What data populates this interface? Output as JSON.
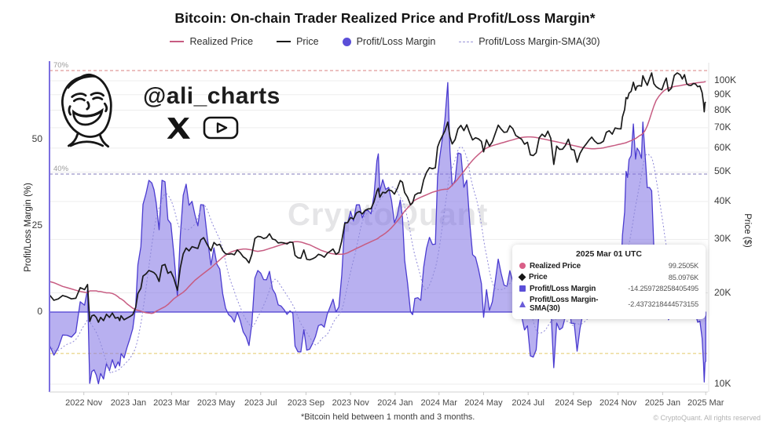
{
  "header": {
    "title": "Bitcoin: On-chain Trader Realized Price and Profit/Loss Margin*"
  },
  "legend": {
    "items": [
      {
        "label": "Realized Price",
        "marker": "line",
        "color": "#c75c82"
      },
      {
        "label": "Price",
        "marker": "line",
        "color": "#1a1a1a"
      },
      {
        "label": "Profit/Loss Margin",
        "marker": "circle",
        "color": "#5b4fd8"
      },
      {
        "label": "Profit/Loss Margin-SMA(30)",
        "marker": "dash",
        "color": "#9a94d8"
      }
    ]
  },
  "watermarks": {
    "handle": "@ali_charts",
    "center": "CryptoQuant",
    "icons": [
      "laughing-face",
      "x-logo",
      "youtube-logo"
    ]
  },
  "axes": {
    "left": {
      "title": "Profit/Loss Margin (%)",
      "ticks": [
        {
          "label": "50",
          "value": 50
        },
        {
          "label": "25",
          "value": 25
        },
        {
          "label": "0",
          "value": 0
        }
      ]
    },
    "right": {
      "title": "Price ($)",
      "scale": "log",
      "ticks": [
        {
          "label": "100K",
          "value": 100
        },
        {
          "label": "90K",
          "value": 90
        },
        {
          "label": "80K",
          "value": 80
        },
        {
          "label": "70K",
          "value": 70
        },
        {
          "label": "60K",
          "value": 60
        },
        {
          "label": "50K",
          "value": 50
        },
        {
          "label": "40K",
          "value": 40
        },
        {
          "label": "30K",
          "value": 30
        },
        {
          "label": "20K",
          "value": 20
        },
        {
          "label": "10K",
          "value": 10
        }
      ]
    },
    "x": {
      "ticks": [
        {
          "label": "2022 Nov",
          "day": 47
        },
        {
          "label": "2023 Jan",
          "day": 108
        },
        {
          "label": "2023 Mar",
          "day": 167
        },
        {
          "label": "2023 May",
          "day": 228
        },
        {
          "label": "2023 Jul",
          "day": 289
        },
        {
          "label": "2023 Sep",
          "day": 351
        },
        {
          "label": "2023 Nov",
          "day": 412
        },
        {
          "label": "2024 Jan",
          "day": 473
        },
        {
          "label": "2024 Mar",
          "day": 533
        },
        {
          "label": "2024 May",
          "day": 594
        },
        {
          "label": "2024 Jul",
          "day": 655
        },
        {
          "label": "2024 Sep",
          "day": 717
        },
        {
          "label": "2024 Nov",
          "day": 778
        },
        {
          "label": "2025 Jan",
          "day": 839
        },
        {
          "label": "2025 Mar",
          "day": 898
        }
      ]
    }
  },
  "thresholds": [
    {
      "label": "70%",
      "value": 70,
      "color": "#e09a9a"
    },
    {
      "label": "40%",
      "value": 40,
      "color": "#9a94c8"
    },
    {
      "label": "",
      "value": -12,
      "color": "#e6cf7a"
    }
  ],
  "tooltip": {
    "title": "2025 Mar 01 UTC",
    "rows": [
      {
        "marker": "circle",
        "color": "#d95f87",
        "label": "Realized Price",
        "value": "99.2505K"
      },
      {
        "marker": "diamond",
        "color": "#151515",
        "label": "Price",
        "value": "85.0976K"
      },
      {
        "marker": "square",
        "color": "#5b4fd8",
        "label": "Profit/Loss Margin",
        "value": "-14.259728258405495"
      },
      {
        "marker": "triangle",
        "color": "#6a5cd8",
        "label": "Profit/Loss Margin-SMA(30)",
        "value": "-2.4373218444573155"
      }
    ]
  },
  "footer": {
    "note": "*Bitcoin held between 1 month and 3 months.",
    "copyright": "© CryptoQuant. All rights reserved"
  },
  "colors": {
    "area_fill": "rgba(126,112,228,0.55)",
    "area_edge": "#4b3cd0",
    "price": "#1a1a1a",
    "realized": "#c75c82",
    "sma": "#8f89d9",
    "grid": "#ededed",
    "left_axis": "#7b6fe0",
    "bottom_axis": "#d9d9d9",
    "right_edge": "#e3e3e3",
    "tick": "#c9c9c9"
  },
  "chart_data": {
    "type": "area+line",
    "title": "Bitcoin: On-chain Trader Realized Price and Profit/Loss Margin*",
    "x_axis": "date (days since start_date)",
    "start_date": "2022-09-15",
    "left_axis": {
      "label": "Profit/Loss Margin (%)",
      "range": [
        -23,
        72
      ]
    },
    "right_axis": {
      "label": "Price ($)",
      "scale": "log",
      "range_k": [
        9.7,
        115
      ]
    },
    "note": "margin_pct = (price/realized_price - 1) * 100; SMA(30) = 30-day moving average of margin_pct",
    "days": [
      0,
      6,
      12,
      18,
      24,
      30,
      36,
      42,
      48,
      52,
      55,
      58,
      61,
      64,
      67,
      70,
      74,
      78,
      82,
      86,
      90,
      94,
      96,
      98,
      102,
      106,
      110,
      114,
      118,
      121,
      125,
      128,
      132,
      136,
      140,
      143,
      146,
      150,
      154,
      158,
      162,
      166,
      170,
      175,
      179,
      183,
      187,
      191,
      195,
      199,
      203,
      207,
      211,
      216,
      221,
      225,
      229,
      233,
      237,
      241,
      245,
      249,
      253,
      257,
      261,
      265,
      269,
      273,
      277,
      281,
      285,
      289,
      293,
      297,
      301,
      305,
      309,
      313,
      317,
      321,
      325,
      329,
      333,
      336,
      340,
      344,
      348,
      352,
      356,
      360,
      364,
      368,
      372,
      376,
      380,
      384,
      388,
      392,
      396,
      400,
      404,
      408,
      412,
      416,
      420,
      424,
      428,
      432,
      436,
      440,
      444,
      448,
      450,
      452,
      456,
      460,
      464,
      468,
      472,
      476,
      480,
      483,
      486,
      490,
      494,
      497,
      500,
      504,
      508,
      512,
      516,
      520,
      524,
      528,
      531,
      534,
      538,
      541,
      545,
      548,
      551,
      555,
      559,
      563,
      567,
      571,
      575,
      579,
      583,
      587,
      591,
      594,
      598,
      602,
      606,
      610,
      614,
      618,
      622,
      626,
      630,
      634,
      638,
      642,
      646,
      650,
      654,
      658,
      662,
      666,
      670,
      674,
      678,
      682,
      686,
      690,
      694,
      698,
      702,
      706,
      710,
      714,
      718,
      722,
      726,
      730,
      734,
      738,
      742,
      746,
      750,
      754,
      758,
      762,
      766,
      770,
      774,
      778,
      782,
      784,
      787,
      789,
      791,
      793,
      796,
      799,
      802,
      804,
      807,
      810,
      812,
      815,
      818,
      821,
      824,
      827,
      830,
      834,
      838,
      841,
      844,
      847,
      851,
      855,
      859,
      863,
      866,
      869,
      872,
      875,
      878,
      881,
      884,
      887,
      890,
      893,
      895,
      896,
      897,
      898
    ],
    "price_k": [
      19.7,
      18.9,
      19.1,
      19.6,
      19.4,
      19.1,
      19.2,
      20.8,
      20.5,
      21.3,
      16.1,
      16.8,
      16.9,
      16.6,
      16.0,
      16.6,
      16.2,
      17.0,
      16.6,
      17.15,
      16.5,
      16.6,
      16.2,
      16.8,
      16.3,
      16.5,
      16.7,
      16.95,
      17.9,
      19.9,
      20.7,
      22.7,
      23.1,
      23.7,
      23.5,
      23.3,
      22.9,
      21.8,
      24.6,
      24.8,
      23.2,
      23.5,
      22.4,
      20.4,
      24.2,
      26.9,
      28.1,
      27.5,
      28.4,
      28.2,
      28.0,
      29.9,
      30.4,
      28.8,
      27.5,
      29.3,
      28.7,
      28.9,
      27.6,
      26.9,
      26.8,
      26.9,
      26.7,
      27.7,
      27.1,
      26.3,
      25.9,
      25.1,
      26.8,
      30.2,
      30.7,
      30.6,
      30.2,
      30.4,
      31.3,
      30.1,
      29.9,
      29.2,
      29.3,
      29.2,
      29.0,
      29.4,
      29.3,
      26.6,
      26.1,
      26.0,
      27.7,
      25.8,
      25.7,
      25.9,
      26.2,
      26.8,
      26.6,
      26.2,
      27.0,
      27.4,
      27.9,
      26.8,
      27.2,
      29.7,
      33.9,
      34.1,
      35.4,
      35.0,
      36.7,
      37.1,
      36.4,
      37.4,
      37.8,
      37.9,
      39.9,
      43.3,
      44.2,
      41.3,
      42.9,
      42.7,
      43.7,
      43.4,
      42.3,
      44.2,
      46.9,
      46.3,
      42.8,
      41.3,
      39.0,
      39.6,
      42.0,
      42.6,
      42.7,
      47.1,
      49.9,
      51.7,
      51.3,
      51.7,
      60.4,
      63.2,
      66.1,
      68.3,
      73.1,
      65.3,
      61.9,
      64.0,
      69.4,
      71.3,
      68.5,
      71.6,
      67.2,
      63.8,
      64.9,
      64.3,
      63.1,
      58.3,
      63.9,
      60.9,
      62.9,
      67.0,
      71.4,
      69.3,
      67.6,
      67.8,
      71.1,
      69.5,
      66.0,
      65.1,
      64.2,
      61.8,
      62.7,
      57.0,
      56.7,
      57.9,
      64.8,
      66.7,
      65.4,
      68.2,
      64.6,
      53.0,
      60.9,
      59.4,
      59.5,
      61.2,
      64.2,
      59.4,
      59.1,
      53.9,
      57.6,
      60.0,
      61.7,
      63.6,
      65.2,
      63.3,
      62.1,
      62.3,
      63.2,
      67.6,
      68.4,
      66.7,
      69.9,
      69.5,
      69.4,
      75.9,
      80.4,
      88.0,
      87.3,
      91.0,
      92.3,
      98.9,
      93.1,
      95.9,
      96.4,
      96.0,
      103.9,
      99.8,
      96.6,
      101.4,
      106.1,
      97.8,
      95.7,
      94.2,
      93.4,
      98.1,
      102.1,
      92.5,
      94.5,
      104.1,
      106.1,
      104.7,
      101.3,
      104.7,
      97.7,
      96.6,
      96.5,
      97.9,
      97.6,
      95.6,
      96.1,
      91.4,
      84.3,
      79.0,
      84.7,
      85.0976
    ],
    "realized_price_k": [
      21.8,
      21.6,
      21.3,
      21.0,
      20.8,
      20.6,
      20.4,
      20.2,
      20.1,
      20.0,
      20.3,
      20.3,
      20.3,
      20.3,
      20.2,
      20.2,
      20.1,
      20.0,
      20.0,
      19.9,
      19.7,
      19.4,
      19.2,
      19.1,
      18.8,
      18.4,
      18.1,
      17.8,
      17.6,
      17.5,
      17.4,
      17.3,
      17.2,
      17.15,
      17.1,
      17.2,
      17.4,
      17.6,
      17.8,
      18.0,
      18.3,
      18.7,
      19.1,
      19.5,
      19.8,
      20.1,
      20.5,
      21.0,
      21.5,
      22.0,
      22.4,
      22.8,
      23.2,
      23.7,
      24.2,
      24.7,
      25.2,
      25.7,
      26.2,
      26.6,
      27.0,
      27.3,
      27.5,
      27.7,
      27.8,
      27.9,
      27.9,
      27.8,
      27.7,
      27.5,
      27.4,
      27.5,
      27.6,
      27.8,
      28.0,
      28.2,
      28.4,
      28.6,
      28.8,
      29.0,
      29.2,
      29.3,
      29.4,
      29.5,
      29.5,
      29.4,
      29.2,
      29.0,
      28.8,
      28.5,
      28.2,
      27.9,
      27.6,
      27.4,
      27.2,
      27.0,
      26.9,
      26.8,
      26.8,
      26.8,
      26.9,
      27.1,
      27.4,
      27.7,
      28.0,
      28.3,
      28.6,
      28.9,
      29.2,
      29.5,
      29.8,
      30.1,
      30.3,
      30.6,
      31.0,
      31.5,
      32.1,
      32.8,
      33.6,
      34.5,
      35.4,
      36.3,
      37.2,
      38.1,
      39.0,
      39.9,
      40.4,
      40.9,
      41.3,
      41.7,
      42.1,
      42.5,
      42.9,
      43.2,
      43.4,
      43.6,
      43.8,
      43.9,
      43.9,
      44.5,
      45.3,
      46.3,
      47.5,
      48.9,
      50.3,
      51.8,
      53.3,
      54.7,
      56.0,
      57.2,
      58.3,
      59.2,
      60.0,
      60.6,
      61.1,
      61.5,
      61.9,
      62.3,
      62.7,
      63.1,
      63.5,
      63.9,
      64.3,
      64.7,
      65.0,
      65.2,
      65.3,
      65.3,
      65.2,
      65.0,
      64.7,
      64.4,
      64.1,
      63.8,
      63.5,
      63.2,
      62.9,
      62.6,
      62.3,
      62.0,
      61.7,
      61.4,
      61.1,
      60.8,
      60.5,
      60.2,
      60.0,
      59.8,
      59.7,
      59.7,
      59.8,
      59.9,
      60.1,
      60.4,
      60.7,
      61.0,
      61.3,
      61.6,
      61.9,
      62.1,
      62.3,
      62.5,
      62.8,
      63.1,
      63.5,
      64.0,
      64.5,
      65.0,
      65.8,
      66.4,
      67.0,
      68.5,
      71.0,
      74.5,
      78.5,
      82.5,
      86.0,
      89.0,
      91.3,
      92.8,
      93.8,
      94.6,
      95.2,
      95.7,
      96.1,
      96.4,
      96.7,
      97.0,
      97.3,
      97.6,
      97.9,
      98.1,
      98.3,
      98.5,
      98.7,
      98.9,
      99.0,
      99.1,
      99.2,
      99.2505
    ]
  }
}
